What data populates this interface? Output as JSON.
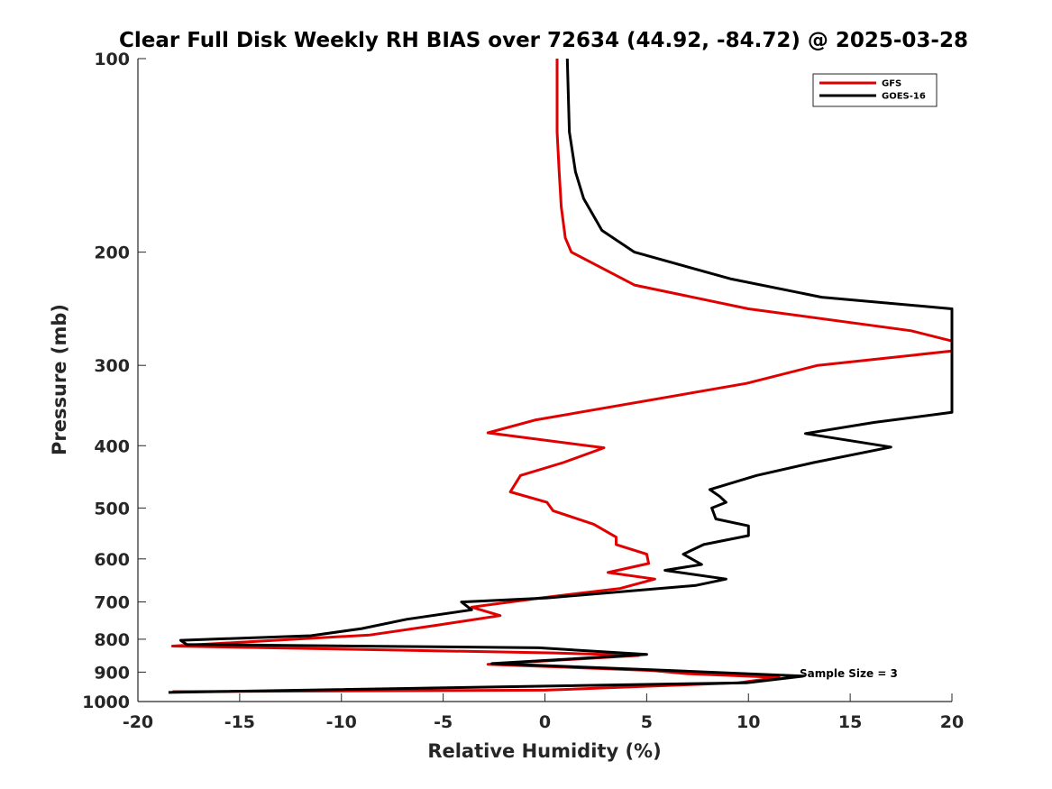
{
  "chart_data": {
    "type": "line",
    "title": "Clear Full Disk Weekly RH BIAS over 72634 (44.92, -84.72) @ 2025-03-28",
    "xlabel": "Relative Humidity (%)",
    "ylabel": "Pressure (mb)",
    "xlim": [
      -20,
      20
    ],
    "ylim": [
      100,
      1000
    ],
    "y_scale": "log",
    "y_reversed": true,
    "x_ticks": [
      "-20",
      "-15",
      "-10",
      "-5",
      "0",
      "5",
      "10",
      "15",
      "20"
    ],
    "x_tick_values": [
      -20,
      -15,
      -10,
      -5,
      0,
      5,
      10,
      15,
      20
    ],
    "y_ticks": [
      "100",
      "200",
      "300",
      "400",
      "500",
      "600",
      "700",
      "800",
      "900",
      "1000"
    ],
    "y_tick_values": [
      100,
      200,
      300,
      400,
      500,
      600,
      700,
      800,
      900,
      1000
    ],
    "legend_position": "top-right",
    "annotation": "Sample Size = 3",
    "series": [
      {
        "name": "GFS",
        "color": "#e00000",
        "points": [
          [
            0.6,
            100
          ],
          [
            0.6,
            130
          ],
          [
            0.7,
            150
          ],
          [
            0.8,
            170
          ],
          [
            1.0,
            190
          ],
          [
            1.3,
            200
          ],
          [
            4.4,
            225
          ],
          [
            10.0,
            245
          ],
          [
            18.0,
            265
          ],
          [
            20.0,
            275
          ],
          [
            20.0,
            285
          ],
          [
            13.4,
            300
          ],
          [
            9.9,
            320
          ],
          [
            -0.5,
            365
          ],
          [
            -2.8,
            382
          ],
          [
            2.9,
            403
          ],
          [
            0.9,
            425
          ],
          [
            -1.2,
            445
          ],
          [
            -1.7,
            472
          ],
          [
            0.1,
            490
          ],
          [
            0.4,
            505
          ],
          [
            2.4,
            530
          ],
          [
            3.5,
            555
          ],
          [
            3.5,
            570
          ],
          [
            5.0,
            590
          ],
          [
            5.1,
            610
          ],
          [
            3.1,
            630
          ],
          [
            5.4,
            645
          ],
          [
            3.7,
            667
          ],
          [
            -0.2,
            690
          ],
          [
            -3.6,
            713
          ],
          [
            -2.2,
            735
          ],
          [
            -5.2,
            760
          ],
          [
            -8.6,
            788
          ],
          [
            -18.3,
            820
          ],
          [
            0.2,
            840
          ],
          [
            4.6,
            848
          ],
          [
            -2.8,
            875
          ],
          [
            5.3,
            895
          ],
          [
            7.0,
            905
          ],
          [
            11.5,
            917
          ],
          [
            9.5,
            935
          ],
          [
            0.0,
            960
          ],
          [
            -18.3,
            965
          ]
        ]
      },
      {
        "name": "GOES-16",
        "color": "#000000",
        "points": [
          [
            1.1,
            100
          ],
          [
            1.2,
            130
          ],
          [
            1.5,
            150
          ],
          [
            1.9,
            165
          ],
          [
            2.8,
            185
          ],
          [
            4.4,
            200
          ],
          [
            9.1,
            220
          ],
          [
            13.6,
            235
          ],
          [
            20.0,
            245
          ],
          [
            20.0,
            355
          ],
          [
            16.2,
            368
          ],
          [
            12.8,
            383
          ],
          [
            17.0,
            402
          ],
          [
            13.2,
            425
          ],
          [
            10.4,
            445
          ],
          [
            8.1,
            468
          ],
          [
            8.6,
            480
          ],
          [
            8.9,
            490
          ],
          [
            8.2,
            500
          ],
          [
            8.4,
            520
          ],
          [
            10.0,
            533
          ],
          [
            10.0,
            552
          ],
          [
            7.8,
            570
          ],
          [
            6.8,
            590
          ],
          [
            7.7,
            612
          ],
          [
            5.9,
            625
          ],
          [
            8.9,
            645
          ],
          [
            7.4,
            660
          ],
          [
            0.1,
            690
          ],
          [
            -4.1,
            700
          ],
          [
            -3.6,
            720
          ],
          [
            -6.8,
            745
          ],
          [
            -9.0,
            770
          ],
          [
            -11.5,
            790
          ],
          [
            -17.9,
            803
          ],
          [
            -17.6,
            815
          ],
          [
            -0.3,
            825
          ],
          [
            5.0,
            845
          ],
          [
            -2.6,
            873
          ],
          [
            5.5,
            893
          ],
          [
            12.7,
            913
          ],
          [
            9.9,
            935
          ],
          [
            -18.5,
            968
          ]
        ]
      }
    ]
  }
}
